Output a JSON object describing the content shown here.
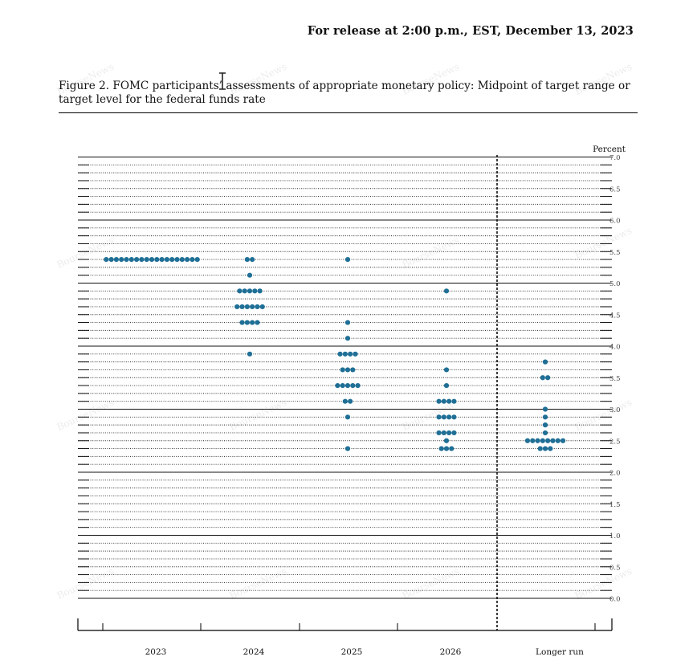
{
  "release_line": "For release at 2:00 p.m., EST, December 13, 2023",
  "figure_caption": "Figure 2.  FOMC participants’ assessments of appropriate monetary policy:  Midpoint of target range or target level for the federal funds rate",
  "chart_data": {
    "type": "scatter",
    "title": "",
    "xlabel": "",
    "ylabel": "Percent",
    "ylim": [
      0,
      7.0
    ],
    "y_ticks": [
      0.0,
      0.5,
      1.0,
      1.5,
      2.0,
      2.5,
      3.0,
      3.5,
      4.0,
      4.5,
      5.0,
      5.5,
      6.0,
      6.5,
      7.0
    ],
    "y_tick_labels": [
      "0.0",
      "0.5",
      "1.0",
      "1.5",
      "2.0",
      "2.5",
      "3.0",
      "3.5",
      "4.0",
      "4.5",
      "5.0",
      "5.5",
      "6.0",
      "6.5",
      "7.0"
    ],
    "grid": "dotted horizontal lines every 0.125, solid at whole percents",
    "dot_color": "#1f6f96",
    "categories": [
      "2023",
      "2024",
      "2025",
      "2026",
      "Longer run"
    ],
    "dots": [
      {
        "category": "2023",
        "rates": [
          {
            "rate": 5.375,
            "count": 19
          }
        ]
      },
      {
        "category": "2024",
        "rates": [
          {
            "rate": 5.375,
            "count": 2
          },
          {
            "rate": 5.125,
            "count": 1
          },
          {
            "rate": 4.875,
            "count": 5
          },
          {
            "rate": 4.625,
            "count": 6
          },
          {
            "rate": 4.375,
            "count": 4
          },
          {
            "rate": 3.875,
            "count": 1
          }
        ]
      },
      {
        "category": "2025",
        "rates": [
          {
            "rate": 5.375,
            "count": 1
          },
          {
            "rate": 4.375,
            "count": 1
          },
          {
            "rate": 4.125,
            "count": 1
          },
          {
            "rate": 3.875,
            "count": 4
          },
          {
            "rate": 3.625,
            "count": 3
          },
          {
            "rate": 3.375,
            "count": 5
          },
          {
            "rate": 3.125,
            "count": 2
          },
          {
            "rate": 2.875,
            "count": 1
          },
          {
            "rate": 2.375,
            "count": 1
          }
        ]
      },
      {
        "category": "2026",
        "rates": [
          {
            "rate": 4.875,
            "count": 1
          },
          {
            "rate": 3.625,
            "count": 1
          },
          {
            "rate": 3.375,
            "count": 1
          },
          {
            "rate": 3.125,
            "count": 4
          },
          {
            "rate": 2.875,
            "count": 4
          },
          {
            "rate": 2.625,
            "count": 4
          },
          {
            "rate": 2.5,
            "count": 1
          },
          {
            "rate": 2.375,
            "count": 3
          }
        ]
      },
      {
        "category": "Longer run",
        "rates": [
          {
            "rate": 3.75,
            "count": 1
          },
          {
            "rate": 3.5,
            "count": 2
          },
          {
            "rate": 3.0,
            "count": 1
          },
          {
            "rate": 2.875,
            "count": 1
          },
          {
            "rate": 2.75,
            "count": 1
          },
          {
            "rate": 2.625,
            "count": 1
          },
          {
            "rate": 2.5,
            "count": 8
          },
          {
            "rate": 2.375,
            "count": 3
          }
        ]
      }
    ]
  },
  "watermark": "BourseNews"
}
